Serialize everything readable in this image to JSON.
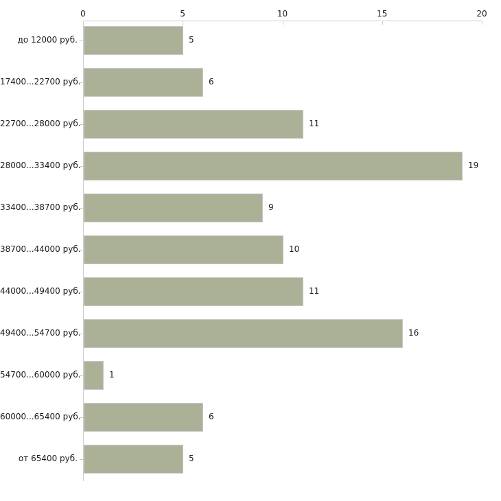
{
  "chart_data": {
    "type": "bar",
    "orientation": "horizontal",
    "title": "",
    "xlabel": "",
    "ylabel": "",
    "categories": [
      "до 12000 руб.",
      "17400...22700 руб.",
      "22700...28000 руб.",
      "28000...33400 руб.",
      "33400...38700 руб.",
      "38700...44000 руб.",
      "44000...49400 руб.",
      "49400...54700 руб.",
      "54700...60000 руб.",
      "60000...65400 руб.",
      "от 65400 руб."
    ],
    "values": [
      5,
      6,
      11,
      19,
      9,
      10,
      11,
      16,
      1,
      6,
      5
    ],
    "xlim": [
      0,
      20
    ],
    "x_ticks": [
      0,
      5,
      10,
      15,
      20
    ],
    "x_axis_position": "top",
    "grid": false,
    "legend": null,
    "bar_color": "#abb197",
    "bar_border_color": "#c8c8c8",
    "axis_line_color": "#cccccc",
    "tick_mark_color": "#d3cda6",
    "text_color": "#1a1a1a",
    "background_color": "#ffffff"
  }
}
